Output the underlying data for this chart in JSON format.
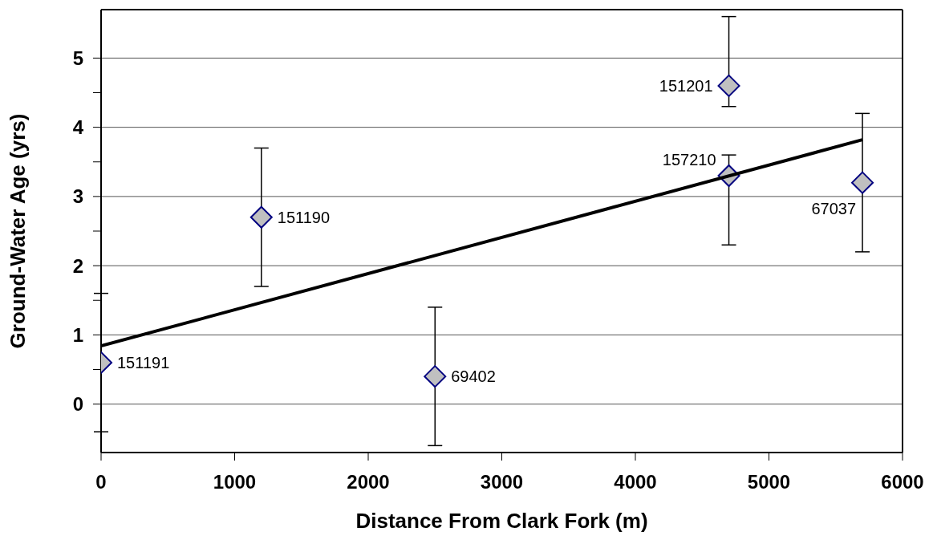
{
  "chart_data": {
    "type": "scatter",
    "xlabel": "Distance From Clark Fork (m)",
    "ylabel": "Ground-Water Age (yrs)",
    "xlim": [
      0,
      6000
    ],
    "xticks": [
      0,
      1000,
      2000,
      3000,
      4000,
      5000,
      6000
    ],
    "ylim": [
      -0.7,
      5.7
    ],
    "yticks": [
      0,
      {
        "value": 0.5,
        "label": null
      },
      1,
      {
        "value": 1.5,
        "label": null
      },
      2,
      {
        "value": 2.5,
        "label": null
      },
      3,
      {
        "value": 3.5,
        "label": null
      },
      4,
      {
        "value": 4.5,
        "label": null
      },
      5
    ],
    "grid": "y",
    "series": [
      {
        "x": [
          0,
          1200,
          2500,
          4700,
          4700,
          5700
        ],
        "values": [
          0.6,
          2.7,
          0.4,
          4.6,
          3.3,
          3.2
        ],
        "errors": [
          1.0,
          1.0,
          1.0,
          [
            4.3,
            5.6
          ],
          [
            2.3,
            3.6
          ],
          1.0
        ],
        "color": "#c0c0c0",
        "marker": "diamond"
      },
      {
        "type": "line",
        "x": [
          0,
          5700
        ],
        "values": [
          0.84,
          3.82
        ],
        "color": "#000000",
        "marker": "none",
        "line_style": "solid"
      }
    ],
    "annotations": [
      {
        "text": "151191",
        "x": 0,
        "y": 0.6
      },
      {
        "text": "151190",
        "x": 1200,
        "y": 2.7
      },
      {
        "text": "69402",
        "x": 2500,
        "y": 0.4
      },
      {
        "text": "151201",
        "x": 4700,
        "y": 4.6
      },
      {
        "text": "157210",
        "x": 4700,
        "y": 3.3
      },
      {
        "text": "67037",
        "x": 5700,
        "y": 3.2
      }
    ]
  }
}
